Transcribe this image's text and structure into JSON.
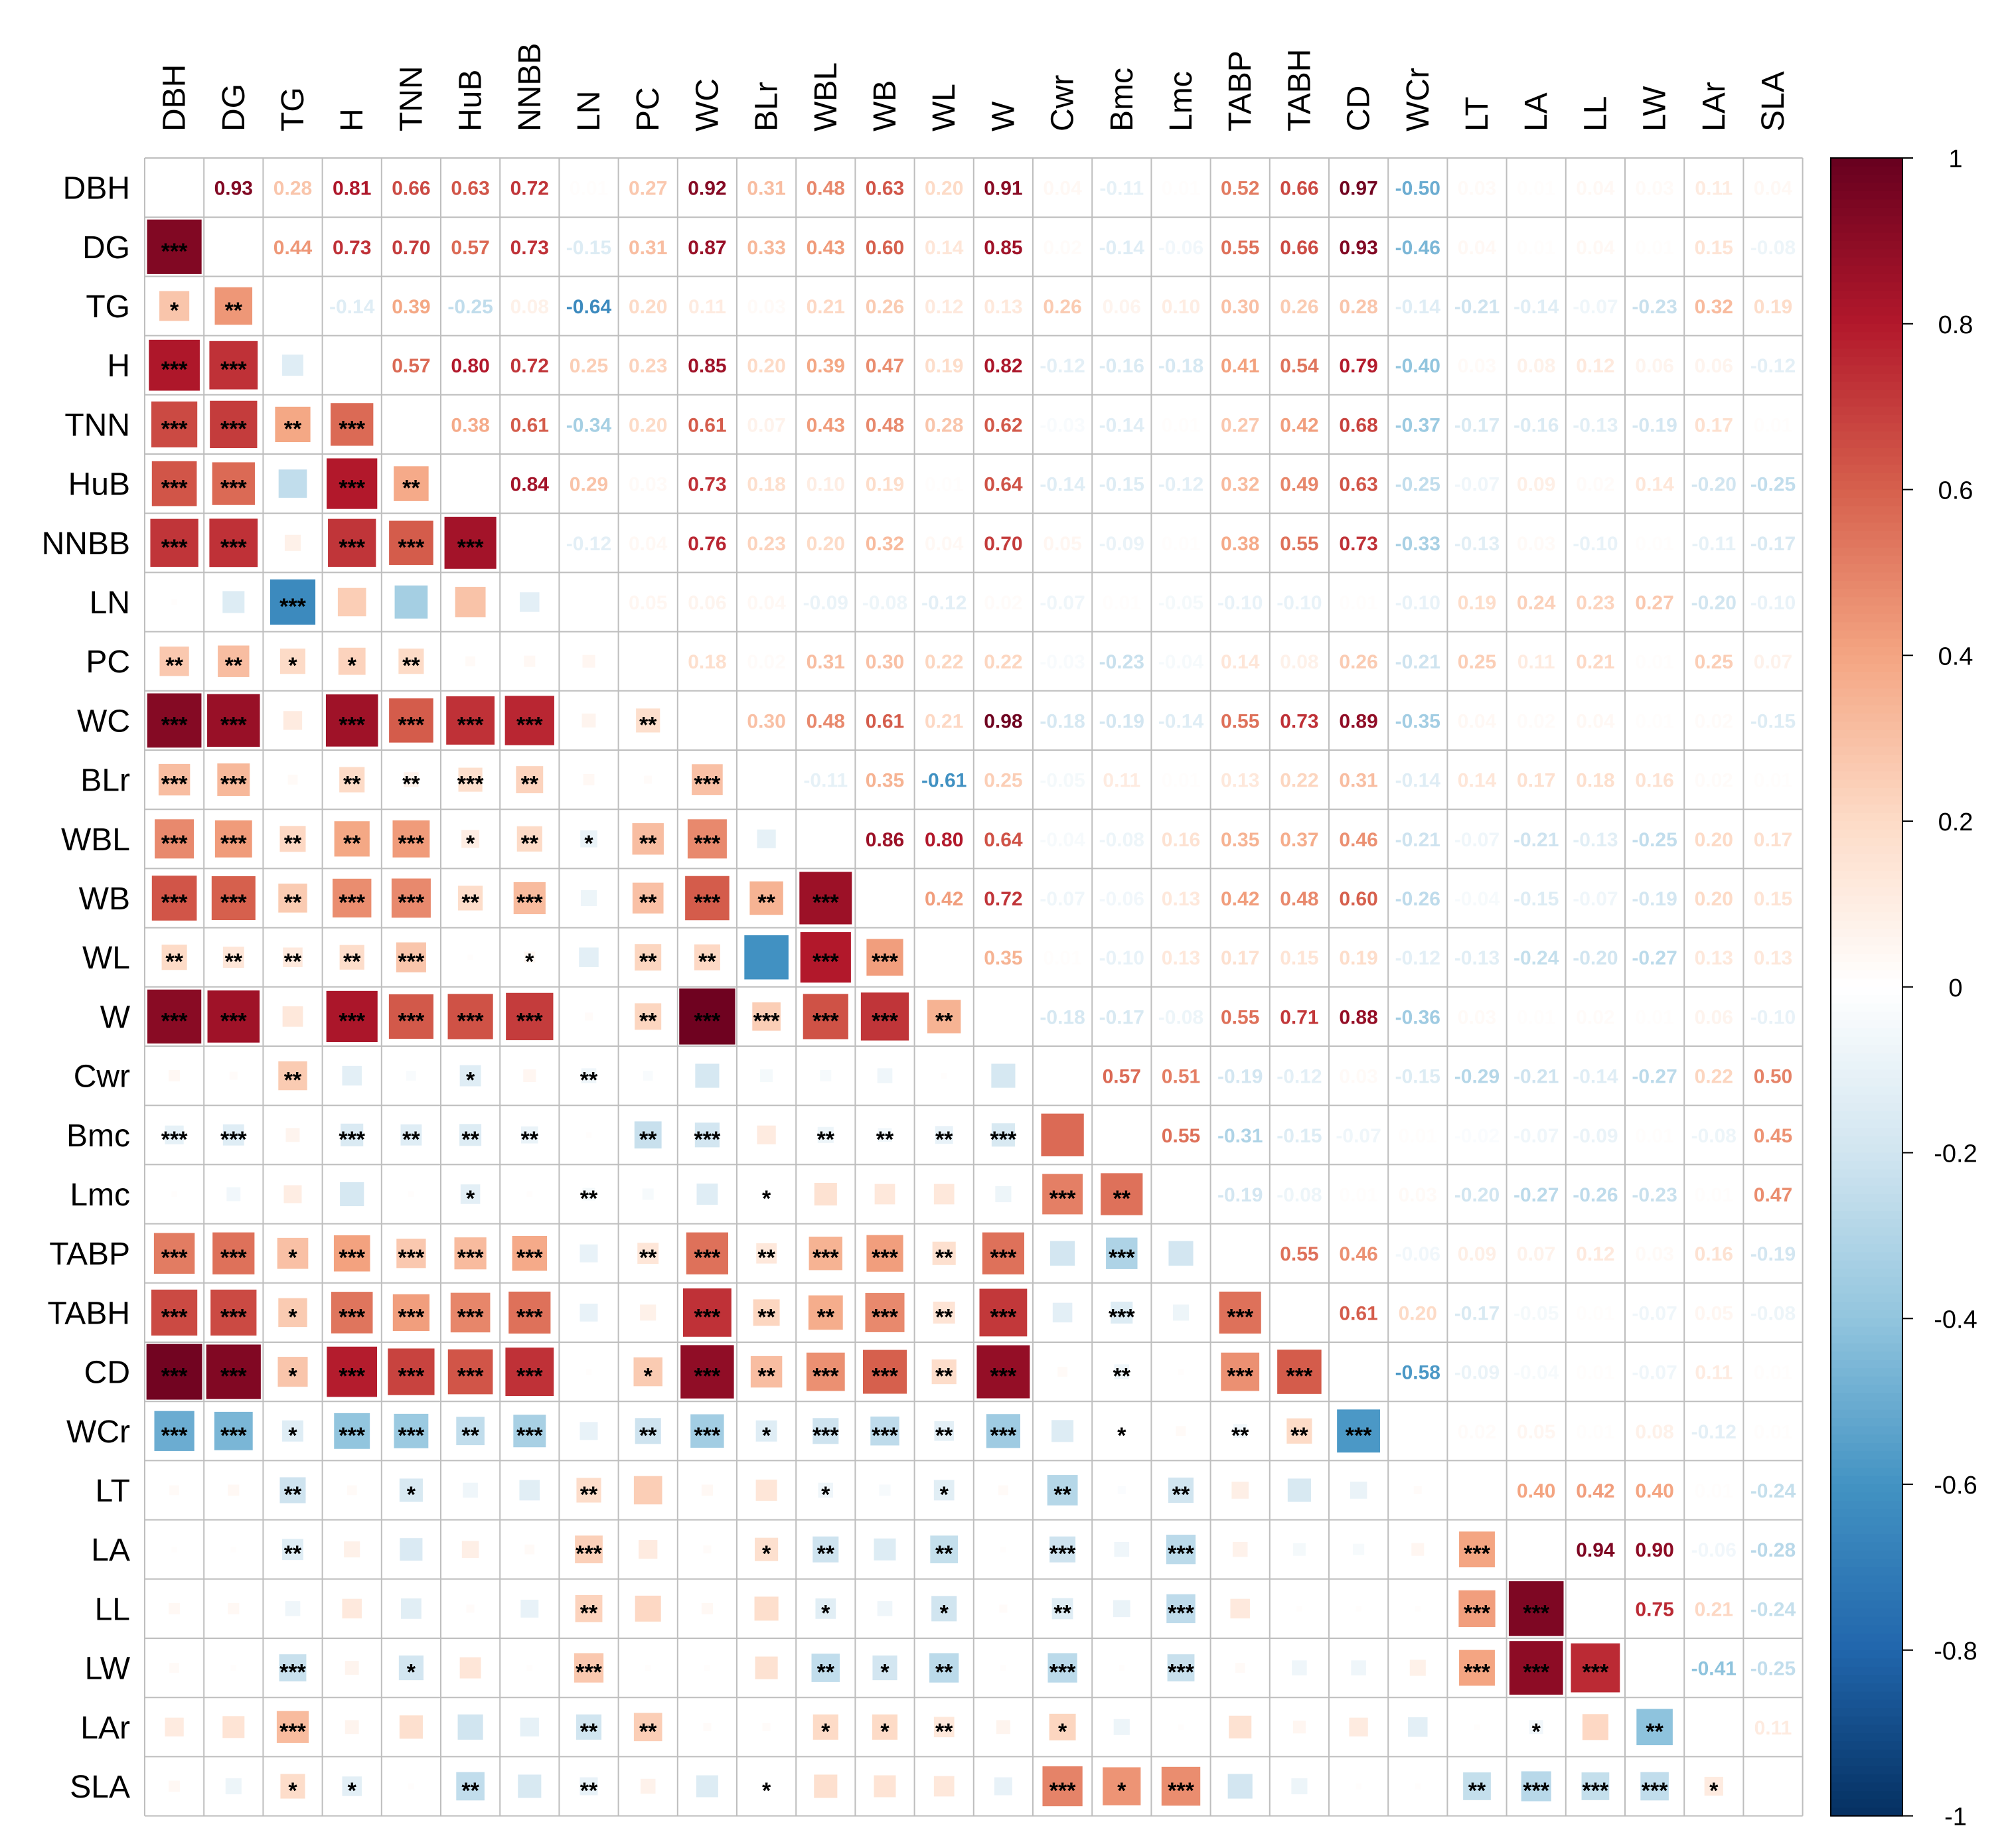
{
  "chart_data": {
    "type": "heatmap",
    "subtype": "correlation-matrix",
    "title": "",
    "xlabel": "",
    "ylabel": "",
    "variables": [
      "DBH",
      "DG",
      "TG",
      "H",
      "TNN",
      "HuB",
      "NNBB",
      "LN",
      "PC",
      "WC",
      "BLr",
      "WBL",
      "WB",
      "WL",
      "W",
      "Cwr",
      "Bmc",
      "Lmc",
      "TABP",
      "TABH",
      "CD",
      "WCr",
      "LT",
      "LA",
      "LL",
      "LW",
      "LAr",
      "SLA"
    ],
    "upper_triangle": "correlation coefficients printed as text",
    "lower_triangle": "squares sized and coloured by coefficient, with significance stars",
    "upper_coefficients": {
      "DBH": [
        "0.93",
        "0.28",
        "0.81",
        "0.66",
        "0.63",
        "0.72",
        "0.01",
        "0.27",
        "0.92",
        "0.31",
        "0.48",
        "0.63",
        "0.20",
        "0.91",
        "0.04",
        "-0.11",
        "0.01",
        "0.52",
        "0.66",
        "0.97",
        "-0.50",
        "0.03",
        "0.01",
        "0.04",
        "0.03",
        "0.11",
        "0.04"
      ],
      "DG": [
        "0.44",
        "0.73",
        "0.70",
        "0.57",
        "0.73",
        "-0.15",
        "0.31",
        "0.87",
        "0.33",
        "0.43",
        "0.60",
        "0.14",
        "0.85",
        "0.02",
        "-0.14",
        "-0.06",
        "0.55",
        "0.66",
        "0.93",
        "-0.46",
        "0.04",
        "0.01",
        "0.04",
        "0.01",
        "0.15",
        "-0.08"
      ],
      "TG": [
        "-0.14",
        "0.39",
        "-0.25",
        "0.08",
        "-0.64",
        "0.20",
        "0.11",
        "0.03",
        "0.21",
        "0.26",
        "0.12",
        "0.13",
        "0.26",
        "0.06",
        "0.10",
        "0.30",
        "0.26",
        "0.28",
        "-0.14",
        "-0.21",
        "-0.14",
        "-0.07",
        "-0.23",
        "0.32",
        "0.19"
      ],
      "H": [
        "0.57",
        "0.80",
        "0.72",
        "0.25",
        "0.23",
        "0.85",
        "0.20",
        "0.39",
        "0.47",
        "0.19",
        "0.82",
        "-0.12",
        "-0.16",
        "-0.18",
        "0.41",
        "0.54",
        "0.79",
        "-0.40",
        "0.03",
        "0.08",
        "0.12",
        "0.06",
        "0.06",
        "-0.12"
      ],
      "TNN": [
        "0.38",
        "0.61",
        "-0.34",
        "0.20",
        "0.61",
        "0.07",
        "0.43",
        "0.48",
        "0.28",
        "0.62",
        "-0.03",
        "-0.14",
        "0.01",
        "0.27",
        "0.42",
        "0.68",
        "-0.37",
        "-0.17",
        "-0.16",
        "-0.13",
        "-0.19",
        "0.17",
        "0.01"
      ],
      "HuB": [
        "0.84",
        "0.29",
        "0.03",
        "0.73",
        "0.18",
        "0.10",
        "0.19",
        "0.01",
        "0.64",
        "-0.14",
        "-0.15",
        "-0.12",
        "0.32",
        "0.49",
        "0.63",
        "-0.25",
        "-0.07",
        "0.09",
        "0.02",
        "0.14",
        "-0.20",
        "-0.25"
      ],
      "NNBB": [
        "-0.12",
        "0.04",
        "0.76",
        "0.23",
        "0.20",
        "0.32",
        "0.04",
        "0.70",
        "0.05",
        "-0.09",
        "0.01",
        "0.38",
        "0.55",
        "0.73",
        "-0.33",
        "-0.13",
        "0.03",
        "-0.10",
        "0.01",
        "-0.11",
        "-0.17"
      ],
      "LN": [
        "0.05",
        "0.06",
        "0.04",
        "-0.09",
        "-0.08",
        "-0.12",
        "0.02",
        "-0.07",
        "0.01",
        "-0.05",
        "-0.10",
        "-0.10",
        "0.01",
        "-0.10",
        "0.19",
        "0.24",
        "0.23",
        "0.27",
        "-0.20",
        "-0.10"
      ],
      "PC": [
        "0.18",
        "0.02",
        "0.31",
        "0.30",
        "0.22",
        "0.22",
        "-0.03",
        "-0.23",
        "-0.04",
        "0.14",
        "0.08",
        "0.26",
        "-0.21",
        "0.25",
        "0.11",
        "0.21",
        "0.01",
        "0.25",
        "0.07"
      ],
      "WC": [
        "0.30",
        "0.48",
        "0.61",
        "0.21",
        "0.98",
        "-0.18",
        "-0.19",
        "-0.14",
        "0.55",
        "0.73",
        "0.89",
        "-0.35",
        "0.04",
        "0.02",
        "0.04",
        "0.01",
        "0.02",
        "-0.15"
      ],
      "BLr": [
        "-0.11",
        "0.35",
        "-0.61",
        "0.25",
        "-0.05",
        "0.11",
        "0.01",
        "0.13",
        "0.22",
        "0.31",
        "-0.14",
        "0.14",
        "0.17",
        "0.18",
        "0.16",
        "0.02",
        "0.01"
      ],
      "WBL": [
        "0.86",
        "0.80",
        "0.64",
        "-0.04",
        "-0.08",
        "0.16",
        "0.35",
        "0.37",
        "0.46",
        "-0.21",
        "-0.07",
        "-0.21",
        "-0.13",
        "-0.25",
        "0.20",
        "0.17"
      ],
      "WB": [
        "0.42",
        "0.72",
        "-0.07",
        "-0.06",
        "0.13",
        "0.42",
        "0.48",
        "0.60",
        "-0.26",
        "-0.04",
        "-0.15",
        "-0.07",
        "-0.19",
        "0.20",
        "0.15"
      ],
      "WL": [
        "0.35",
        "0.01",
        "-0.10",
        "0.13",
        "0.17",
        "0.15",
        "0.19",
        "-0.12",
        "-0.13",
        "-0.24",
        "-0.20",
        "-0.27",
        "0.13",
        "0.13"
      ],
      "W": [
        "-0.18",
        "-0.17",
        "-0.08",
        "0.55",
        "0.71",
        "0.88",
        "-0.36",
        "0.03",
        "0.01",
        "0.02",
        "0.01",
        "0.06",
        "-0.10"
      ],
      "Cwr": [
        "0.57",
        "0.51",
        "-0.19",
        "-0.12",
        "0.03",
        "-0.15",
        "-0.29",
        "-0.21",
        "-0.14",
        "-0.27",
        "0.22",
        "0.50"
      ],
      "Bmc": [
        "0.55",
        "-0.31",
        "-0.15",
        "-0.07",
        "0.01",
        "-0.02",
        "-0.07",
        "-0.09",
        "0.01",
        "-0.08",
        "0.45"
      ],
      "Lmc": [
        "-0.19",
        "-0.08",
        "0.01",
        "0.03",
        "-0.20",
        "-0.27",
        "-0.26",
        "-0.23",
        "0.01",
        "0.47"
      ],
      "TABP": [
        "0.55",
        "0.46",
        "-0.06",
        "0.09",
        "0.07",
        "0.12",
        "0.03",
        "0.16",
        "-0.19"
      ],
      "TABH": [
        "0.61",
        "0.20",
        "-0.17",
        "-0.05",
        "0.01",
        "-0.07",
        "0.05",
        "-0.08"
      ],
      "CD": [
        "-0.58",
        "-0.09",
        "-0.04",
        "0.01",
        "-0.07",
        "0.11",
        "0.01"
      ],
      "WCr": [
        "0.02",
        "0.05",
        "0.01",
        "0.08",
        "-0.12",
        "0.01"
      ],
      "LT": [
        "0.40",
        "0.42",
        "0.40",
        "0.01",
        "-0.24"
      ],
      "LA": [
        "0.94",
        "0.90",
        "-0.06",
        "-0.28"
      ],
      "LL": [
        "0.75",
        "0.21",
        "-0.24"
      ],
      "LW": [
        "-0.41",
        "-0.25"
      ],
      "LAr": [
        "0.11"
      ],
      "SLA": []
    },
    "significance_stars": {
      "DG": [
        "***"
      ],
      "TG": [
        "*",
        "**"
      ],
      "H": [
        "***",
        "***",
        ""
      ],
      "TNN": [
        "***",
        "***",
        "**",
        "***"
      ],
      "HuB": [
        "***",
        "***",
        "",
        "***",
        "**"
      ],
      "NNBB": [
        "***",
        "***",
        "",
        "***",
        "***",
        "***"
      ],
      "LN": [
        "",
        "",
        "***",
        "",
        "",
        "",
        ""
      ],
      "PC": [
        "**",
        "**",
        "*",
        "*",
        "**",
        "",
        "",
        " "
      ],
      "WC": [
        "***",
        "***",
        "",
        "***",
        "***",
        "***",
        "***",
        "",
        "**"
      ],
      "BLr": [
        "***",
        "***",
        "",
        "**",
        "**",
        "***",
        "**",
        "",
        "",
        "***"
      ],
      "WBL": [
        "***",
        "***",
        "**",
        "**",
        "***",
        "*",
        "**",
        "*",
        "**",
        "***",
        ""
      ],
      "WB": [
        "***",
        "***",
        "**",
        "***",
        "***",
        "**",
        "***",
        "",
        "**",
        "***",
        "**",
        "***"
      ],
      "WL": [
        "**",
        "**",
        "**",
        "**",
        "***",
        "",
        "*",
        "",
        "**",
        "**",
        "",
        "***",
        "***"
      ],
      "W": [
        "***",
        "***",
        "",
        "***",
        "***",
        "***",
        "***",
        "",
        "**",
        "***",
        "***",
        "***",
        "***",
        "**"
      ],
      "Cwr": [
        "",
        "",
        "**",
        "",
        "",
        "*",
        "",
        "**",
        "",
        "",
        "",
        "",
        "",
        "",
        ""
      ],
      "Bmc": [
        "***",
        "***",
        "",
        "***",
        "**",
        "**",
        "**",
        "",
        "**",
        "***",
        "",
        "**",
        "**",
        "**",
        "***",
        ""
      ],
      "Lmc": [
        "",
        "",
        "",
        "",
        "",
        "*",
        "",
        "**",
        "",
        "",
        "*",
        "",
        "",
        "",
        "",
        "***",
        "**"
      ],
      "TABP": [
        "***",
        "***",
        "*",
        "***",
        "***",
        "***",
        "***",
        "",
        "**",
        "***",
        "**",
        "***",
        "***",
        "**",
        "***",
        "",
        "***",
        ""
      ],
      "TABH": [
        "***",
        "***",
        "*",
        "***",
        "***",
        "***",
        "***",
        "",
        "",
        "***",
        "**",
        "**",
        "***",
        "**",
        "***",
        "",
        "***",
        "",
        "***"
      ],
      "CD": [
        "***",
        "***",
        "*",
        "***",
        "***",
        "***",
        "***",
        "",
        "*",
        "***",
        "**",
        "***",
        "***",
        "**",
        "***",
        "",
        "**",
        "",
        "***",
        "***"
      ],
      "WCr": [
        "***",
        "***",
        "*",
        "***",
        "***",
        "**",
        "***",
        "",
        "**",
        "***",
        "*",
        "***",
        "***",
        "**",
        "***",
        "",
        "*",
        "",
        "**",
        "**",
        "***"
      ],
      "LT": [
        "",
        "",
        "**",
        "",
        "*",
        "",
        "",
        "**",
        "",
        "",
        "",
        "*",
        "",
        "*",
        "",
        "**",
        "",
        "**",
        "",
        "",
        "",
        ""
      ],
      "LA": [
        "",
        "",
        "**",
        "",
        "",
        "",
        "",
        "***",
        "",
        "",
        "*",
        "**",
        "",
        "**",
        "",
        "***",
        "",
        "***",
        "",
        "",
        "",
        "",
        "***"
      ],
      "LL": [
        "",
        "",
        "",
        "",
        "",
        "",
        "",
        "**",
        "",
        "",
        "",
        "*",
        "",
        "*",
        "",
        "**",
        "",
        "***",
        "",
        "",
        "",
        "",
        "***",
        "***"
      ],
      "LW": [
        "",
        "",
        "***",
        "",
        "*",
        "",
        "",
        "***",
        "",
        "",
        "",
        "**",
        "*",
        "**",
        "",
        "***",
        "",
        "***",
        "",
        "",
        "",
        "",
        "***",
        "***",
        "***"
      ],
      "LAr": [
        "",
        "",
        "***",
        "",
        "",
        "",
        "",
        "**",
        "**",
        "",
        "",
        "*",
        "*",
        "**",
        "",
        "*",
        "",
        "",
        "",
        "",
        "",
        "",
        "",
        "*",
        "",
        "**"
      ],
      "SLA": [
        "",
        "",
        "*",
        "*",
        "",
        "**",
        "",
        "**",
        "",
        "",
        "*",
        "",
        "",
        "",
        "",
        "***",
        "*",
        "***",
        "",
        "",
        "",
        "",
        "**",
        "***",
        "***",
        "***",
        "*"
      ]
    },
    "colorbar": {
      "ticks": [
        "1",
        "0.8",
        "0.6",
        "0.4",
        "0.2",
        "0",
        "-0.2",
        "-0.4",
        "-0.6",
        "-0.8",
        "-1"
      ],
      "range": [
        -1,
        1
      ]
    },
    "colors": {
      "neg_strong": "#053061",
      "neg": "#2166AC",
      "neg_mid": "#4393C3",
      "neg_light": "#92C5DE",
      "neg_pale": "#D1E5F0",
      "zero": "#FFFFFF",
      "pos_pale": "#FDDBC7",
      "pos_light": "#F4A582",
      "pos_mid": "#D6604D",
      "pos": "#B2182B",
      "pos_strong": "#67001F",
      "grid": "#BEBEBE"
    }
  }
}
